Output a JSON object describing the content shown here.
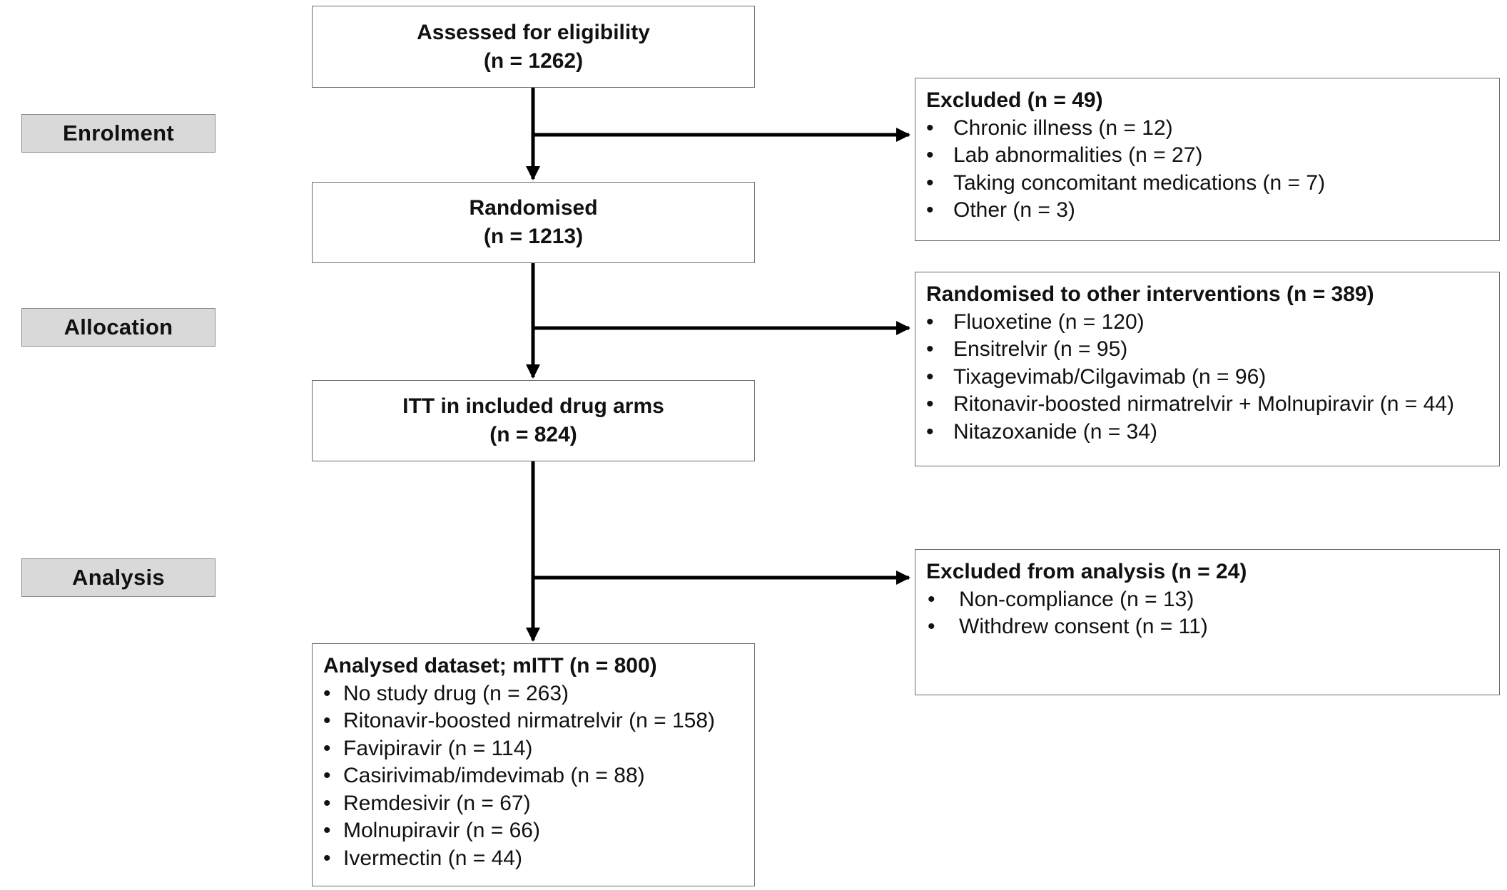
{
  "stages": {
    "enrolment": "Enrolment",
    "allocation": "Allocation",
    "analysis": "Analysis"
  },
  "assessed": {
    "title": "Assessed for eligibility",
    "count": "(n = 1262)"
  },
  "randomised": {
    "title": "Randomised",
    "count": "(n = 1213)"
  },
  "itt": {
    "title": "ITT in included drug arms",
    "count": "(n = 824)"
  },
  "excluded": {
    "heading": "Excluded (n = 49)",
    "items": [
      "Chronic illness (n = 12)",
      "Lab abnormalities (n = 27)",
      "Taking concomitant medications (n = 7)",
      "Other (n = 3)"
    ]
  },
  "other_interventions": {
    "heading": "Randomised to other interventions (n = 389)",
    "items": [
      "Fluoxetine (n = 120)",
      "Ensitrelvir (n = 95)",
      "Tixagevimab/Cilgavimab (n = 96)",
      "Ritonavir-boosted nirmatrelvir + Molnupiravir (n = 44)",
      "Nitazoxanide (n = 34)"
    ]
  },
  "excluded_analysis": {
    "heading": "Excluded from analysis (n = 24)",
    "items": [
      "Non-compliance (n = 13)",
      "Withdrew consent (n = 11)"
    ]
  },
  "analysed": {
    "heading": "Analysed dataset; mITT (n = 800)",
    "items": [
      "No study drug (n = 263)",
      "Ritonavir-boosted nirmatrelvir (n = 158)",
      "Favipiravir (n = 114)",
      "Casirivimab/imdevimab (n = 88)",
      "Remdesivir (n = 67)",
      "Molnupiravir (n = 66)",
      "Ivermectin (n = 44)"
    ]
  },
  "bullet_char": "•",
  "colors": {
    "stage_fill": "#d9d9d9",
    "box_border": "#6b6b6b",
    "arrow": "#000000"
  }
}
